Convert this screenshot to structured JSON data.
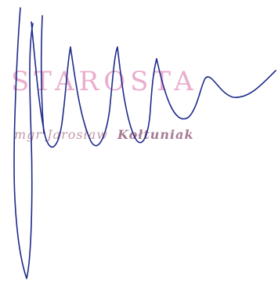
{
  "stamp": {
    "title": "STAROSTA",
    "name_prefix": "mgr Jarosław",
    "name_surname": "Kołtuniak",
    "color_title": "#e8a6c8",
    "color_name": "#c49aa8"
  },
  "signature": {
    "ink_color": "#1f2a8a"
  }
}
